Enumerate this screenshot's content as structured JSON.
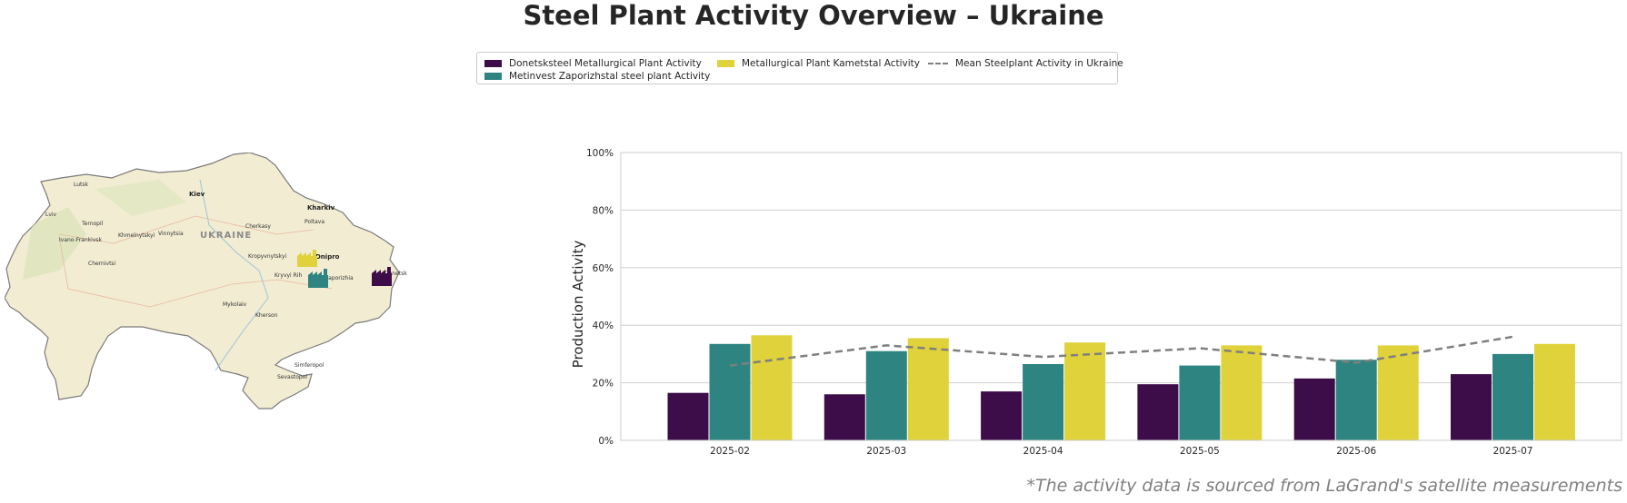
{
  "title": "Steel Plant Activity Overview – Ukraine",
  "footnote": "*The activity data is sourced from LaGrand's satellite measurements",
  "colors": {
    "donetsksteel": "#3d0d4a",
    "metinvest": "#2e8480",
    "kametstal": "#e0d23a",
    "mean": "#7f7f7f",
    "grid": "#d0d0d0",
    "map_land": "#f2ecd2",
    "map_border": "#7a7a7a"
  },
  "legend": [
    {
      "label": "Donetsksteel Metallurgical Plant Activity",
      "kind": "bar",
      "color": "#3d0d4a"
    },
    {
      "label": "Metinvest Zaporizhstal steel plant Activity",
      "kind": "bar",
      "color": "#2e8480"
    },
    {
      "label": "Metallurgical Plant Kametstal Activity",
      "kind": "bar",
      "color": "#e0d23a"
    },
    {
      "label": "Mean Steelplant Activity in Ukraine",
      "kind": "dashed-line",
      "color": "#7f7f7f"
    }
  ],
  "map": {
    "country_label": "UKRAINE",
    "cities": [
      "Lutsk",
      "Kiev",
      "Kharkiv",
      "Lviv",
      "Ternopil",
      "Khmelnytskyi",
      "Vinnytsia",
      "Cherkasy",
      "Poltava",
      "Ivano-Frankivsk",
      "Chernivtsi",
      "Kropyvnytskyi",
      "Dnipro",
      "Kryvyi Rih",
      "Zaporizhia",
      "Donetsk",
      "Mykolaiv",
      "Kherson",
      "Simferopol",
      "Sevastopol"
    ],
    "plant_icons": [
      "factory-icon-kametstal",
      "factory-icon-zaporizhstal",
      "factory-icon-donetsksteel"
    ]
  },
  "chart_data": {
    "type": "bar",
    "categories": [
      "2025-02",
      "2025-03",
      "2025-04",
      "2025-05",
      "2025-06",
      "2025-07"
    ],
    "series": [
      {
        "name": "Donetsksteel Metallurgical Plant Activity",
        "values": [
          16.5,
          16,
          17,
          19.5,
          21.5,
          23
        ]
      },
      {
        "name": "Metinvest Zaporizhstal steel plant Activity",
        "values": [
          33.5,
          31,
          26.5,
          26,
          28,
          30
        ]
      },
      {
        "name": "Metallurgical Plant Kametstal Activity",
        "values": [
          36.5,
          35.5,
          34,
          33,
          33,
          33.5
        ]
      }
    ],
    "line_series": {
      "name": "Mean Steelplant Activity in Ukraine",
      "values": [
        26,
        33,
        29,
        32,
        27,
        36
      ],
      "style": "dashed"
    },
    "ylabel": "Production Activity",
    "ylim": [
      0,
      100
    ],
    "yticks": [
      "0%",
      "20%",
      "40%",
      "60%",
      "80%",
      "100%"
    ],
    "grid": true,
    "legend_position": "top-center"
  }
}
